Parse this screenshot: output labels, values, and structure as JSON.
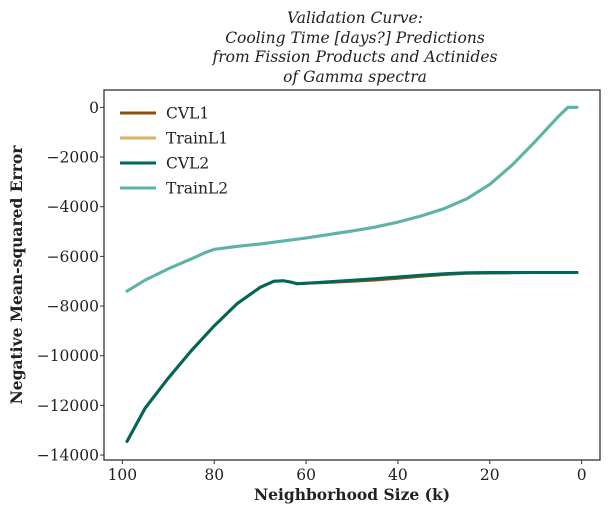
{
  "chart_data": {
    "type": "line",
    "title_lines": [
      "Validation Curve:",
      "Cooling Time [days?] Predictions",
      "from Fission Products and Actinides",
      "of Gamma spectra"
    ],
    "xlabel": "Neighborhood Size (k)",
    "ylabel": "Negative Mean-squared Error",
    "xlim": [
      104,
      -4
    ],
    "ylim": [
      -14200,
      700
    ],
    "x_reversed": true,
    "xticks": [
      100,
      80,
      60,
      40,
      20,
      0
    ],
    "yticks": [
      0,
      -2000,
      -4000,
      -6000,
      -8000,
      -10000,
      -12000,
      -14000
    ],
    "xtick_labels": [
      "100",
      "80",
      "60",
      "40",
      "20",
      "0"
    ],
    "ytick_labels": [
      "0",
      "−2000",
      "−4000",
      "−6000",
      "−8000",
      "−10000",
      "−12000",
      "−14000"
    ],
    "grid": false,
    "legend_position": "top-left",
    "series": [
      {
        "name": "CVL1",
        "color": "#8c510a",
        "x": [
          99,
          95,
          90,
          85,
          80,
          75,
          70,
          67,
          65,
          63,
          62,
          60,
          55,
          50,
          45,
          40,
          35,
          30,
          25,
          20,
          15,
          10,
          5,
          1
        ],
        "y": [
          -13450,
          -12100,
          -10900,
          -9800,
          -8800,
          -7900,
          -7250,
          -7000,
          -6980,
          -7050,
          -7100,
          -7080,
          -7050,
          -7000,
          -6950,
          -6880,
          -6800,
          -6730,
          -6680,
          -6670,
          -6660,
          -6650,
          -6650,
          -6650
        ]
      },
      {
        "name": "TrainL1",
        "color": "#d8b365",
        "x": [
          99,
          95,
          90,
          85,
          82,
          80,
          75,
          70,
          65,
          60,
          55,
          50,
          45,
          40,
          35,
          30,
          25,
          20,
          15,
          10,
          5,
          3,
          2,
          1
        ],
        "y": [
          -7400,
          -6950,
          -6500,
          -6100,
          -5850,
          -5720,
          -5600,
          -5500,
          -5380,
          -5260,
          -5120,
          -4980,
          -4820,
          -4620,
          -4380,
          -4080,
          -3680,
          -3100,
          -2300,
          -1350,
          -350,
          0,
          0,
          0
        ]
      },
      {
        "name": "CVL2",
        "color": "#01665e",
        "x": [
          99,
          95,
          90,
          85,
          80,
          75,
          70,
          67,
          65,
          63,
          62,
          60,
          55,
          50,
          45,
          40,
          35,
          30,
          25,
          20,
          15,
          10,
          5,
          1
        ],
        "y": [
          -13450,
          -12100,
          -10900,
          -9800,
          -8800,
          -7900,
          -7250,
          -7000,
          -6980,
          -7050,
          -7100,
          -7080,
          -7020,
          -6960,
          -6900,
          -6830,
          -6760,
          -6700,
          -6660,
          -6650,
          -6650,
          -6650,
          -6650,
          -6650
        ]
      },
      {
        "name": "TrainL2",
        "color": "#5ab4ac",
        "x": [
          99,
          95,
          90,
          85,
          82,
          80,
          75,
          70,
          65,
          60,
          55,
          50,
          45,
          40,
          35,
          30,
          25,
          20,
          15,
          10,
          5,
          3,
          2,
          1
        ],
        "y": [
          -7400,
          -6950,
          -6500,
          -6100,
          -5850,
          -5720,
          -5600,
          -5500,
          -5380,
          -5260,
          -5120,
          -4980,
          -4820,
          -4620,
          -4380,
          -4080,
          -3680,
          -3100,
          -2300,
          -1350,
          -350,
          0,
          0,
          0
        ]
      }
    ]
  }
}
